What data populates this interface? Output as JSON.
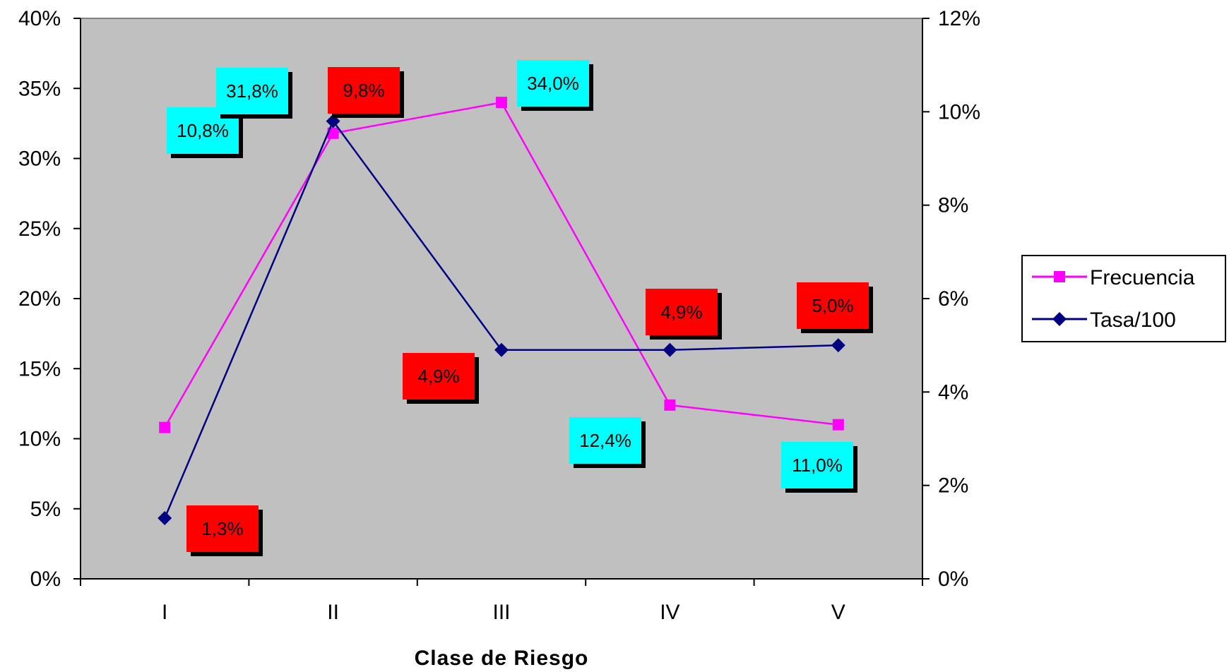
{
  "chart_data": {
    "type": "line",
    "title": "",
    "xlabel": "Clase de Riesgo",
    "ylabel": "",
    "categories": [
      "I",
      "II",
      "III",
      "IV",
      "V"
    ],
    "y_left": {
      "ylim": [
        0,
        40
      ],
      "ticks": [
        "0%",
        "5%",
        "10%",
        "15%",
        "20%",
        "25%",
        "30%",
        "35%",
        "40%"
      ]
    },
    "y_right": {
      "ylim": [
        0,
        12
      ],
      "ticks": [
        "0%",
        "2%",
        "4%",
        "6%",
        "8%",
        "10%",
        "12%"
      ]
    },
    "plot_background": "#c0c0c0",
    "grid": false,
    "legend_position": "right",
    "series": [
      {
        "name": "Frecuencia",
        "axis": "left",
        "color": "#ff00ff",
        "marker": "square",
        "values": [
          10.8,
          31.8,
          34.0,
          12.4,
          11.0
        ],
        "data_labels": [
          "10,8%",
          "31,8%",
          "34,0%",
          "12,4%",
          "11,0%"
        ],
        "label_color": "#00ffff"
      },
      {
        "name": "Tasa/100",
        "axis": "right",
        "color": "#000080",
        "marker": "diamond",
        "values": [
          1.3,
          9.8,
          4.9,
          4.9,
          5.0
        ],
        "data_labels": [
          "1,3%",
          "9,8%",
          "4,9%",
          "4,9%",
          "5,0%"
        ],
        "label_color": "#ff0000"
      }
    ]
  }
}
